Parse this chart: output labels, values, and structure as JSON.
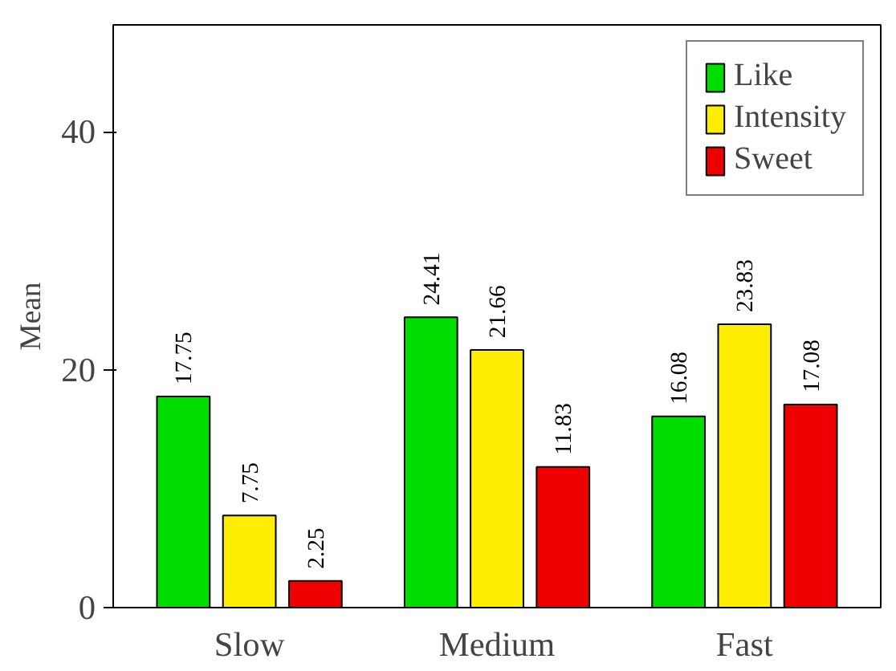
{
  "chart_data": {
    "type": "bar",
    "ylabel": "Mean",
    "categories": [
      "Slow",
      "Medium",
      "Fast"
    ],
    "series": [
      {
        "name": "Like",
        "color": "#00dd00",
        "values": [
          17.75,
          24.41,
          16.08
        ]
      },
      {
        "name": "Intensity",
        "color": "#ffee00",
        "values": [
          7.75,
          21.66,
          23.83
        ]
      },
      {
        "name": "Sweet",
        "color": "#ee0000",
        "values": [
          2.25,
          11.83,
          17.08
        ]
      }
    ],
    "ylim": [
      0,
      49
    ],
    "yticks": [
      0,
      20,
      40
    ],
    "grid": false,
    "legend": "top right",
    "data_labels": true
  }
}
